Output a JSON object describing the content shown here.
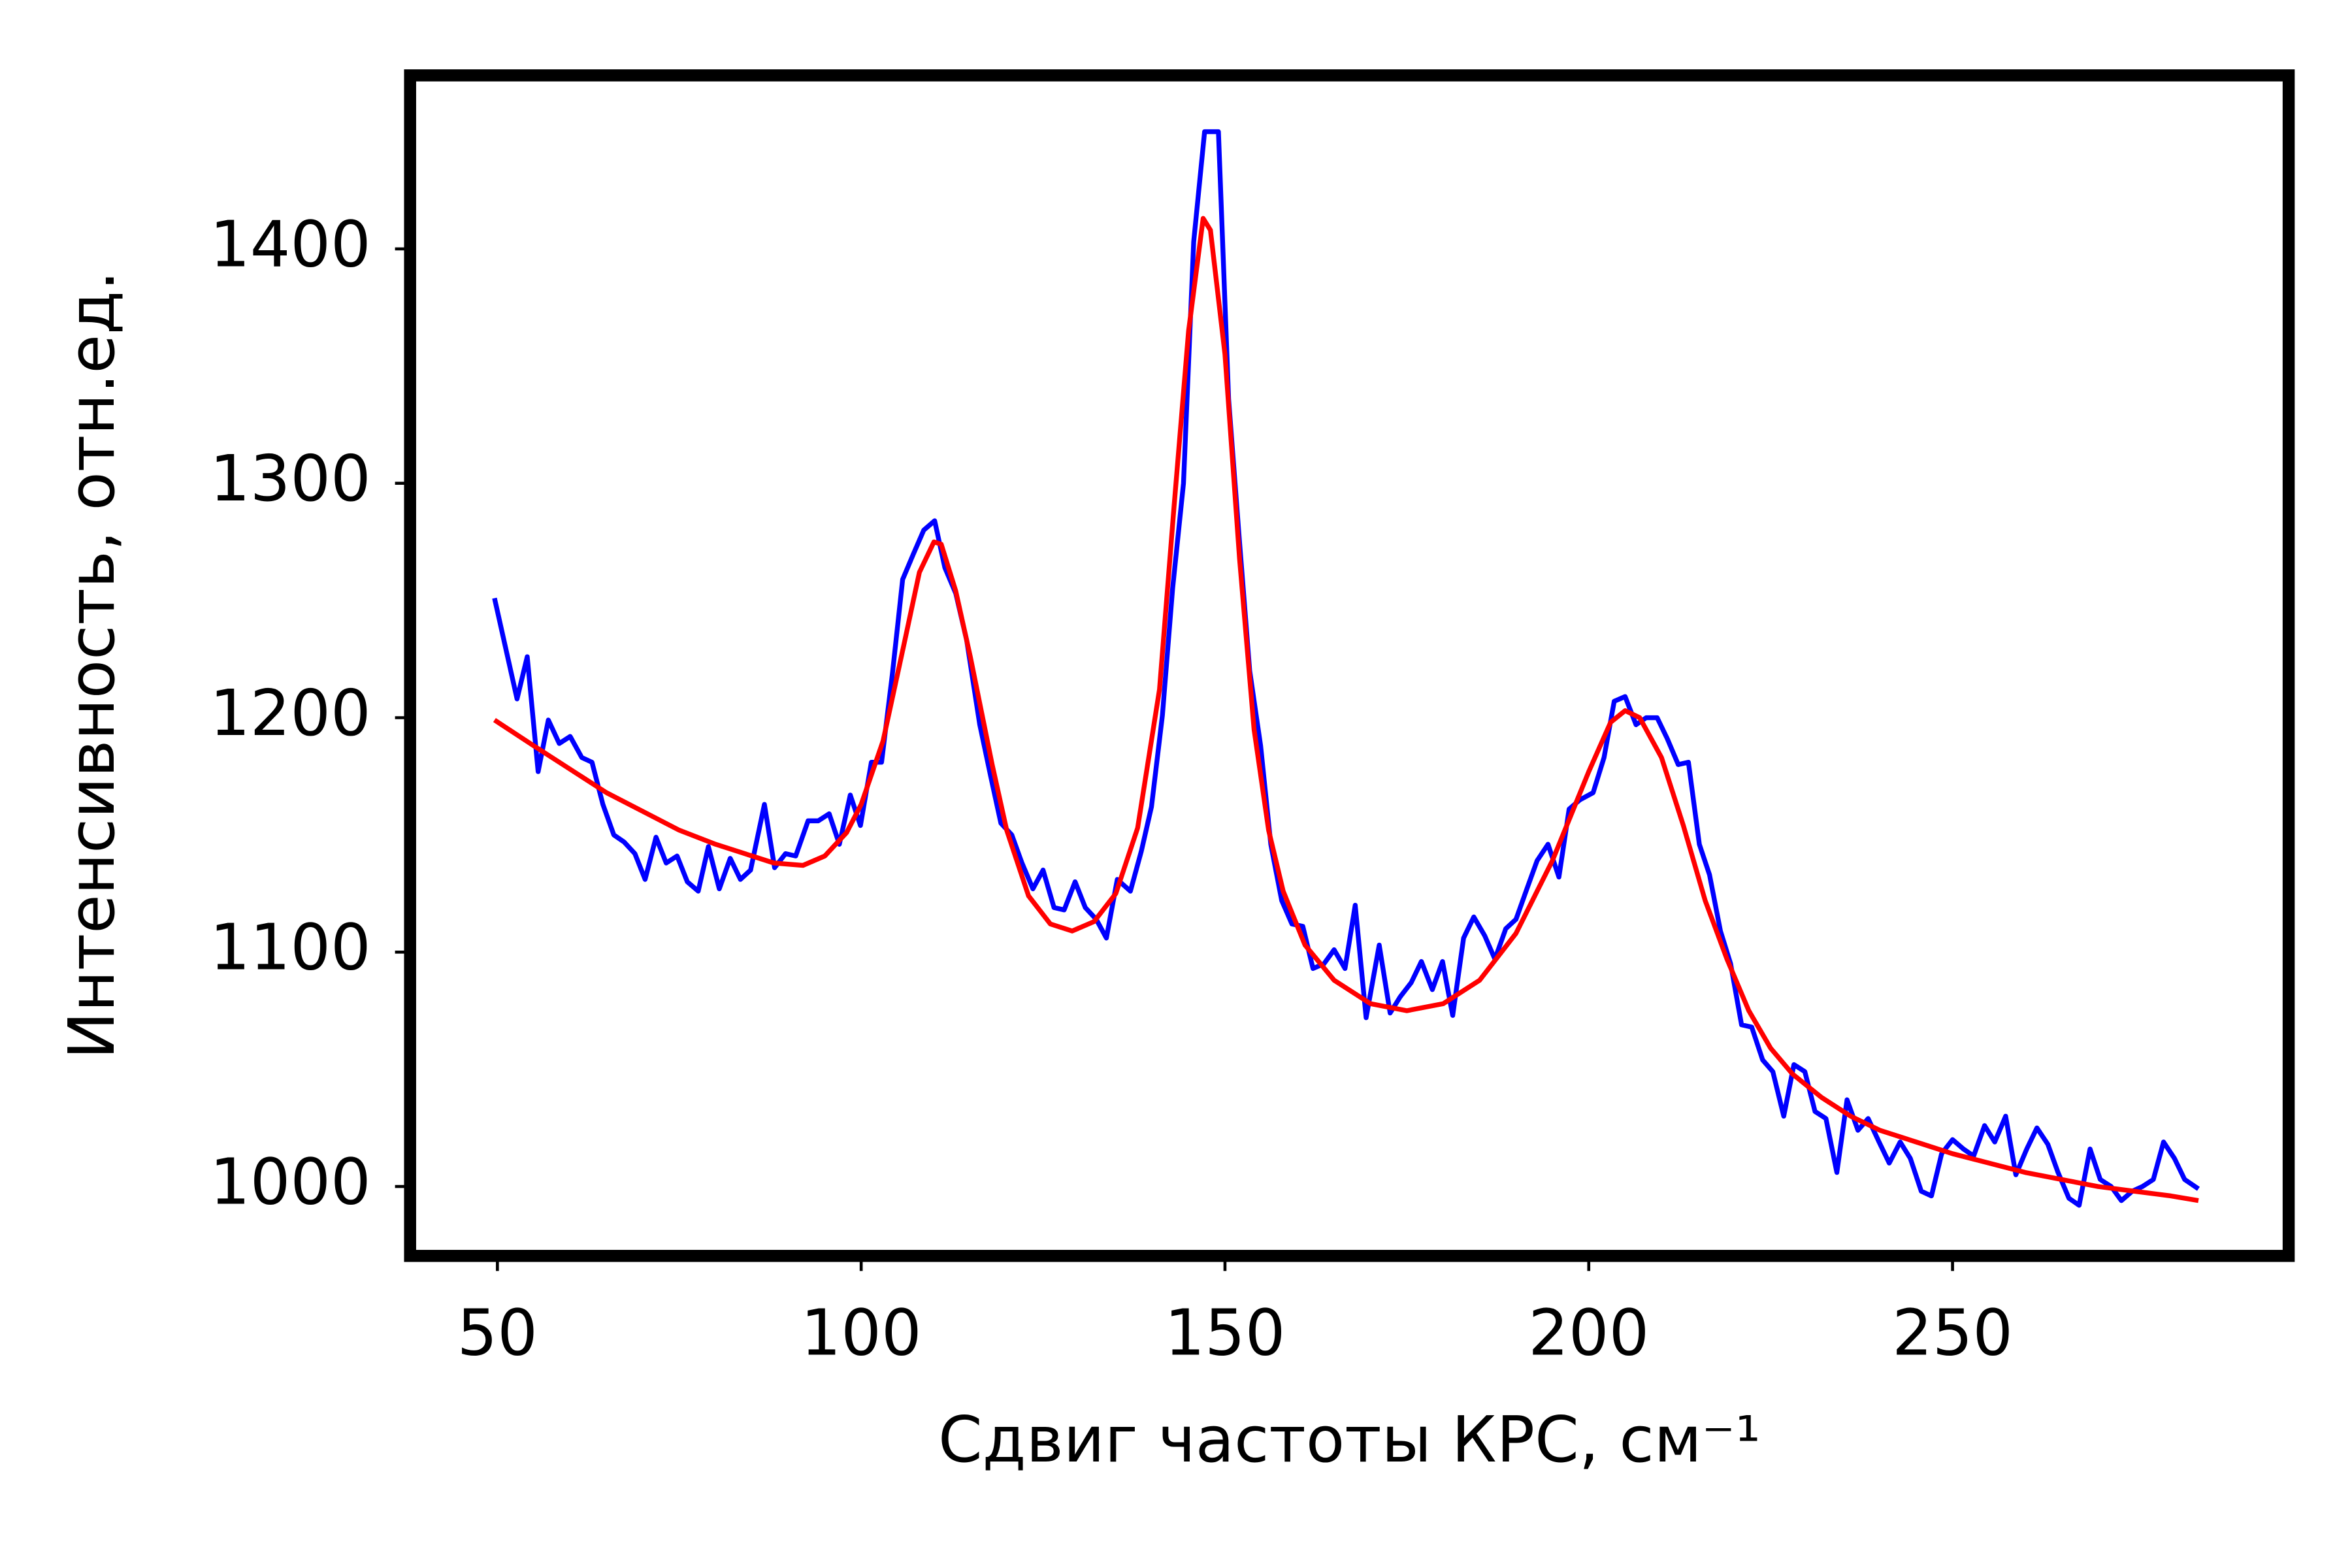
{
  "chart_data": {
    "type": "line",
    "xlabel": "Сдвиг частоты КРС, см⁻¹",
    "ylabel": "Интенсивность, отн.ед.",
    "xlim": [
      38.0,
      296.2
    ],
    "ylim": [
      970.4,
      1474
    ],
    "xticks": [
      50,
      100,
      150,
      200,
      250
    ],
    "yticks": [
      1000,
      1100,
      1200,
      1300,
      1400
    ],
    "grid": false,
    "series": [
      {
        "color": "#0000ff",
        "x": [
          49.6,
          52.7,
          54.1,
          55.6,
          57,
          58.5,
          60,
          61.6,
          63,
          64.5,
          66,
          67.4,
          68.9,
          70.3,
          71.8,
          73.2,
          74.7,
          76.1,
          77.6,
          79,
          80.5,
          82,
          83.4,
          84.8,
          86.7,
          88.1,
          89.6,
          91,
          92.7,
          94.1,
          95.6,
          97,
          98.5,
          99.9,
          101.4,
          102.8,
          104.3,
          105.7,
          107.2,
          108.6,
          110.1,
          111.5,
          113,
          114.5,
          116.3,
          117.8,
          119.2,
          120.7,
          122.1,
          123.6,
          125,
          126.5,
          127.9,
          129.4,
          130.8,
          132.3,
          133.7,
          135.2,
          137,
          138.5,
          139.9,
          141.4,
          142.8,
          144.3,
          145.7,
          147.2,
          149.1,
          150.5,
          152,
          153.4,
          154.9,
          156.3,
          157.8,
          159.2,
          160.7,
          162.1,
          163.6,
          165,
          166.5,
          167.9,
          169.4,
          171.2,
          172.7,
          174.1,
          175.6,
          177,
          178.5,
          179.9,
          181.3,
          182.8,
          184.2,
          185.7,
          187.1,
          188.6,
          190,
          191.5,
          192.9,
          194.4,
          195.9,
          197.3,
          198.8,
          200.6,
          202.1,
          203.5,
          205,
          206.5,
          207.9,
          209.4,
          210.8,
          212.3,
          213.7,
          215.2,
          216.6,
          218.1,
          219.5,
          221,
          222.4,
          223.9,
          225.3,
          226.8,
          228.2,
          229.7,
          231.1,
          232.6,
          234.1,
          235.5,
          237,
          238.4,
          239.9,
          241.3,
          242.8,
          244.2,
          245.7,
          247.1,
          248.5,
          250,
          251.5,
          252.9,
          254.4,
          255.8,
          257.3,
          258.7,
          260.2,
          261.6,
          263.1,
          264.5,
          266,
          267.4,
          268.9,
          270.3,
          271.8,
          273.2,
          274.7,
          276.1,
          277.6,
          279,
          280.5,
          281.9,
          283.8
        ],
        "values": [
          1251,
          1208,
          1226,
          1177,
          1199,
          1189,
          1192,
          1183,
          1181,
          1163,
          1150,
          1147,
          1142,
          1131,
          1149,
          1138,
          1141,
          1130,
          1126,
          1145,
          1127,
          1140,
          1131,
          1135,
          1163,
          1136,
          1142,
          1141,
          1156,
          1156,
          1159,
          1146,
          1167,
          1154,
          1181,
          1181,
          1219,
          1259,
          1270,
          1280,
          1284,
          1264,
          1253,
          1233,
          1197,
          1175,
          1155,
          1150,
          1138,
          1127,
          1135,
          1119,
          1118,
          1130,
          1119,
          1114,
          1106,
          1131,
          1126,
          1143,
          1162,
          1201,
          1255,
          1300,
          1403,
          1450,
          1450,
          1336,
          1275,
          1220,
          1188,
          1146,
          1122,
          1112,
          1111,
          1093,
          1095,
          1101,
          1093,
          1120,
          1072,
          1103,
          1074,
          1081,
          1087,
          1096,
          1084,
          1096,
          1073,
          1106,
          1115,
          1107,
          1097,
          1110,
          1114,
          1127,
          1139,
          1146,
          1132,
          1161,
          1165,
          1168,
          1183,
          1207,
          1209,
          1197,
          1200,
          1200,
          1191,
          1180,
          1181,
          1146,
          1133,
          1109,
          1095,
          1069,
          1068,
          1054,
          1049,
          1030,
          1052,
          1049,
          1032,
          1029,
          1006,
          1037,
          1024,
          1029,
          1019,
          1010,
          1019,
          1012,
          998,
          996,
          1014,
          1020,
          1016,
          1013,
          1026,
          1019,
          1030,
          1005,
          1016,
          1025,
          1018,
          1006,
          995,
          992,
          1016,
          1003,
          1000,
          994,
          998,
          1000,
          1003,
          1019,
          1012,
          1003,
          999
        ]
      },
      {
        "color": "#ff0000",
        "x": [
          49.6,
          55,
          60,
          65,
          70,
          75,
          80,
          85,
          88,
          92,
          95,
          98,
          100,
          103,
          106,
          108,
          110,
          111,
          113,
          115,
          118,
          120,
          123,
          126,
          129,
          132,
          135,
          138,
          141,
          143,
          145,
          147,
          148,
          150,
          152,
          154,
          156,
          158,
          161,
          165,
          170,
          175,
          180,
          185,
          190,
          195,
          200,
          203,
          205,
          207,
          210,
          213,
          216,
          219,
          222,
          225,
          228,
          232,
          236,
          240,
          245,
          250,
          255,
          260,
          265,
          270,
          275,
          280,
          283.8
        ],
        "values": [
          1199,
          1188,
          1178,
          1168,
          1160,
          1152,
          1146,
          1141,
          1138,
          1137,
          1141,
          1151,
          1163,
          1190,
          1233,
          1262,
          1275,
          1274,
          1254,
          1226,
          1180,
          1152,
          1124,
          1112,
          1109,
          1113,
          1125,
          1153,
          1212,
          1290,
          1365,
          1413,
          1408,
          1355,
          1268,
          1195,
          1152,
          1126,
          1103,
          1088,
          1078,
          1075,
          1078,
          1088,
          1108,
          1139,
          1177,
          1198,
          1203,
          1200,
          1183,
          1154,
          1122,
          1097,
          1075,
          1059,
          1048,
          1038,
          1030,
          1024,
          1019,
          1014,
          1010,
          1006,
          1003,
          1000,
          998,
          996,
          994
        ]
      }
    ]
  }
}
